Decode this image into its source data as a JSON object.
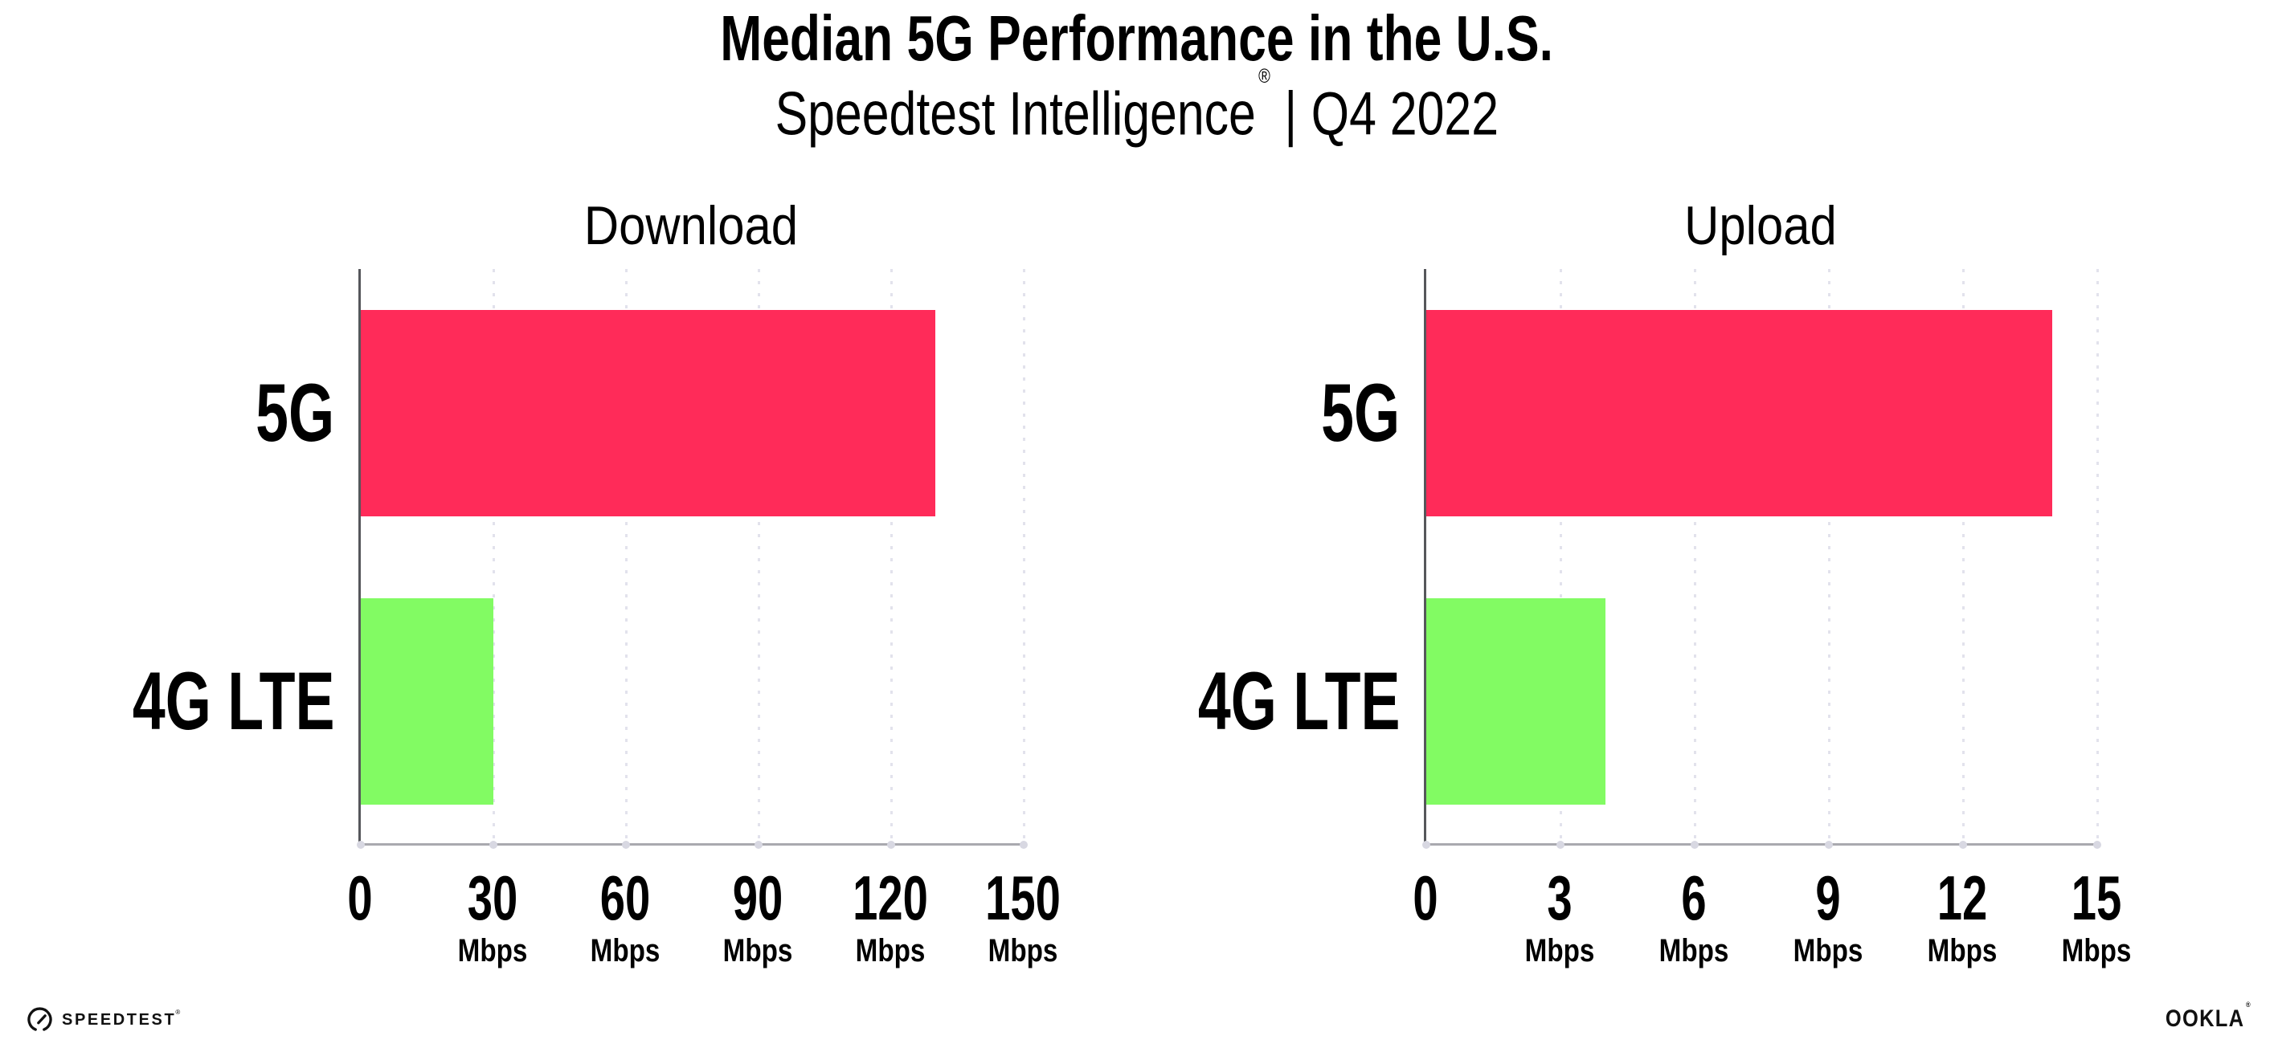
{
  "header": {
    "title": "Median 5G Performance in the U.S.",
    "subtitle_brand": "Speedtest Intelligence",
    "subtitle_reg": "®",
    "subtitle_sep": "|",
    "subtitle_period": "Q4 2022"
  },
  "chart_data": [
    {
      "type": "bar",
      "orientation": "horizontal",
      "title": "Download",
      "categories": [
        "5G",
        "4G LTE"
      ],
      "values": [
        130,
        30
      ],
      "bar_colors": [
        "#ff2b59",
        "#82fb63"
      ],
      "unit": "Mbps",
      "xlim": [
        0,
        150
      ],
      "xticks": [
        0,
        30,
        60,
        90,
        120,
        150
      ],
      "grid": "dotted-vertical",
      "legend": "none"
    },
    {
      "type": "bar",
      "orientation": "horizontal",
      "title": "Upload",
      "categories": [
        "5G",
        "4G LTE"
      ],
      "values": [
        14,
        4
      ],
      "bar_colors": [
        "#ff2b59",
        "#82fb63"
      ],
      "unit": "Mbps",
      "xlim": [
        0,
        15
      ],
      "xticks": [
        0,
        3,
        6,
        9,
        12,
        15
      ],
      "grid": "dotted-vertical",
      "legend": "none"
    }
  ],
  "footer": {
    "speedtest": {
      "label": "SPEEDTEST",
      "mark": "®"
    },
    "ookla": {
      "label": "OOKLA",
      "mark": "®"
    }
  },
  "colors": {
    "bar_5g": "#ff2b59",
    "bar_4g_lte": "#82fb63",
    "gridline": "#e2e2ec",
    "axis_left": "#56575b",
    "axis_bottom": "#a9a9af",
    "text": "#000000"
  }
}
